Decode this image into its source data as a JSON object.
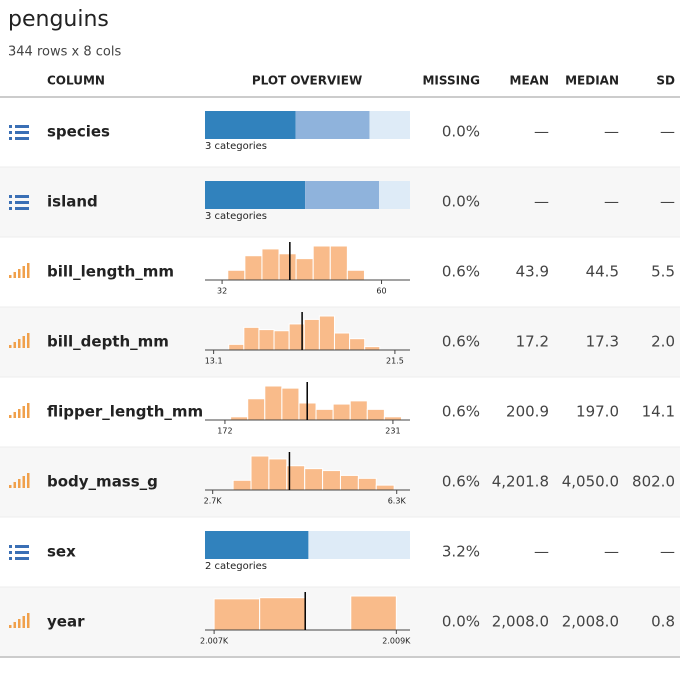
{
  "header": {
    "title": "penguins",
    "subtitle": "344 rows x 8 cols"
  },
  "table": {
    "columns": [
      "COLUMN",
      "PLOT OVERVIEW",
      "MISSING",
      "MEAN",
      "MEDIAN",
      "SD"
    ],
    "rows": [
      {
        "name": "species",
        "plot": {
          "shares": [
            152,
            124,
            68
          ],
          "label": "3 categories"
        },
        "missing": "0.0%",
        "mean": "—",
        "median": "—",
        "sd": "—"
      },
      {
        "name": "island",
        "plot": {
          "shares": [
            168,
            124,
            52
          ],
          "label": "3 categories"
        },
        "missing": "0.0%",
        "mean": "—",
        "median": "—",
        "sd": "—"
      },
      {
        "name": "bill_length_mm",
        "plot": {
          "xlim": [
            29,
            65
          ],
          "xticks": [
            32,
            60
          ],
          "bins": [
            33,
            36,
            39,
            42,
            45,
            48,
            51,
            54,
            57
          ],
          "counts": [
            10,
            25,
            32,
            27,
            22,
            35,
            35,
            10
          ],
          "marker": 43.9
        },
        "missing": "0.6%",
        "mean": "43.9",
        "median": "44.5",
        "sd": "5.5"
      },
      {
        "name": "bill_depth_mm",
        "plot": {
          "xlim": [
            12.7,
            22.2
          ],
          "xticks": [
            13.1,
            21.5
          ],
          "bins": [
            13.8,
            14.5,
            15.2,
            15.9,
            16.6,
            17.3,
            18.0,
            18.7,
            19.4,
            20.1,
            20.8
          ],
          "counts": [
            5,
            20,
            18,
            17,
            23,
            27,
            30,
            15,
            10,
            3
          ],
          "marker": 17.2
        },
        "missing": "0.6%",
        "mean": "17.2",
        "median": "17.3",
        "sd": "2.0"
      },
      {
        "name": "flipper_length_mm",
        "plot": {
          "xlim": [
            165,
            237
          ],
          "xticks": [
            172,
            231
          ],
          "bins": [
            174,
            180,
            186,
            192,
            198,
            204,
            210,
            216,
            222,
            228,
            234
          ],
          "counts": [
            3,
            20,
            32,
            30,
            16,
            10,
            15,
            18,
            10,
            3
          ],
          "marker": 200.9
        },
        "missing": "0.6%",
        "mean": "200.9",
        "median": "197.0",
        "sd": "14.1"
      },
      {
        "name": "body_mass_g",
        "plot": {
          "xlim": [
            2550,
            6560
          ],
          "xticks": [
            {
              "value": 2700,
              "label": "2.7K"
            },
            {
              "value": 6300,
              "label": "6.3K"
            }
          ],
          "bins": [
            3100,
            3450,
            3800,
            4150,
            4500,
            4850,
            5200,
            5550,
            5900,
            6250
          ],
          "counts": [
            10,
            35,
            32,
            25,
            22,
            20,
            15,
            12,
            5
          ],
          "marker": 4201.8
        },
        "missing": "0.6%",
        "mean": "4,201.8",
        "median": "4,050.0",
        "sd": "802.0"
      },
      {
        "name": "sex",
        "plot": {
          "shares": [
            168,
            165
          ],
          "label": "2 categories"
        },
        "missing": "3.2%",
        "mean": "—",
        "median": "—",
        "sd": "—"
      },
      {
        "name": "year",
        "plot": {
          "xlim": [
            2006.9,
            2009.15
          ],
          "xticks": [
            {
              "value": 2007,
              "label": "2.007K"
            },
            {
              "value": 2009,
              "label": "2.009K"
            }
          ],
          "bins": [
            2007,
            2007.5,
            2008,
            2008.5,
            2009
          ],
          "counts": [
            110,
            114,
            0,
            120
          ],
          "marker": 2008.0
        },
        "missing": "0.0%",
        "mean": "2,008.0",
        "median": "2,008.0",
        "sd": "0.8"
      }
    ]
  }
}
